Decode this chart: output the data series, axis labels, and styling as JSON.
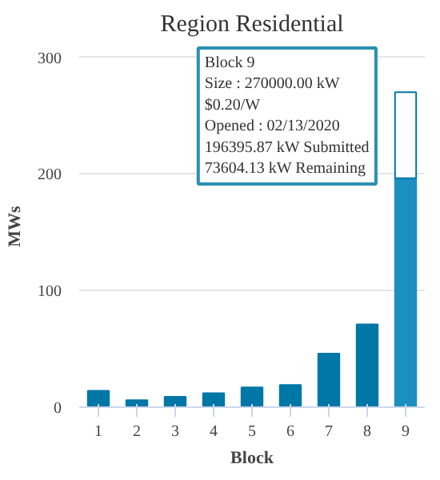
{
  "chart_data": {
    "type": "bar",
    "title": "Region Residential",
    "xlabel": "Block",
    "ylabel": "MWs",
    "categories": [
      "1",
      "2",
      "3",
      "4",
      "5",
      "6",
      "7",
      "8",
      "9"
    ],
    "stacked": true,
    "series": [
      {
        "color": "#0077a6",
        "colors": [
          "#0077a6",
          "#0077a6",
          "#0077a6",
          "#0077a6",
          "#0077a6",
          "#0077a6",
          "#0077a6",
          "#0077a6",
          "#1a90c0"
        ],
        "values": [
          14,
          6,
          9,
          12,
          17,
          19,
          46,
          71,
          196.4
        ]
      },
      {
        "color": "#ffffff",
        "values": [
          null,
          null,
          null,
          null,
          null,
          null,
          null,
          null,
          73.6
        ]
      }
    ],
    "ylim": [
      0,
      310
    ],
    "yticks": [
      0,
      100,
      200,
      300
    ],
    "grid": "y",
    "annotations": [
      "Block 9",
      "Size : 270000.00 kW",
      "$0.20/W",
      "Opened : 02/13/2020",
      "196395.87 kW Submitted",
      "73604.13 kW Remaining"
    ]
  }
}
